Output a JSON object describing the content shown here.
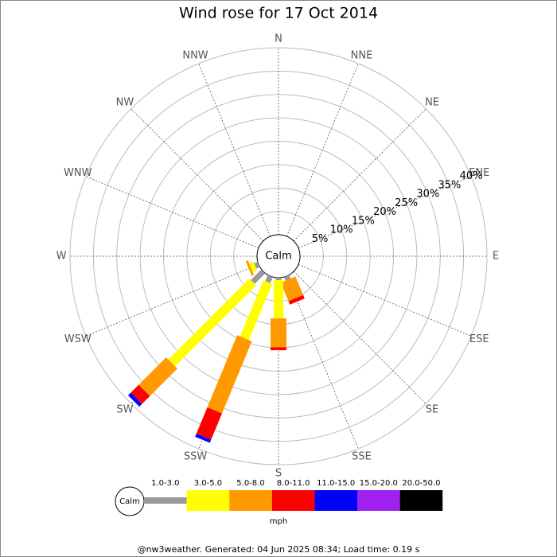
{
  "chart_data": {
    "type": "windrose",
    "title": "Wind rose for 17 Oct 2014",
    "categories": [
      "N",
      "NNE",
      "NE",
      "ENE",
      "E",
      "ESE",
      "SE",
      "SSE",
      "S",
      "SSW",
      "SW",
      "WSW",
      "W",
      "WNW",
      "NW",
      "NNW"
    ],
    "calm_label": "Calm",
    "unit": "mph",
    "rlim": [
      0,
      40
    ],
    "rticks": [
      {
        "value": 5,
        "label": "5%"
      },
      {
        "value": 10,
        "label": "10%"
      },
      {
        "value": 15,
        "label": "15%"
      },
      {
        "value": 20,
        "label": "20%"
      },
      {
        "value": 25,
        "label": "25%"
      },
      {
        "value": 30,
        "label": "30%"
      },
      {
        "value": 35,
        "label": "35%"
      },
      {
        "value": 40,
        "label": "40%"
      }
    ],
    "series": [
      {
        "name": "1.0-3.0",
        "color": "#999999",
        "values": [
          0,
          0,
          0,
          0,
          0,
          0,
          0,
          0.8,
          0.5,
          1.4,
          3.2,
          0.8,
          0,
          0,
          0,
          0
        ]
      },
      {
        "name": "3.0-5.0",
        "color": "#ffff00",
        "values": [
          0,
          0,
          0,
          0,
          0,
          0,
          0,
          0,
          8.2,
          13.0,
          24.5,
          1.0,
          0,
          0,
          0,
          0
        ]
      },
      {
        "name": "5.0-8.0",
        "color": "#ff9900",
        "values": [
          0,
          0,
          0,
          0,
          0,
          0,
          0,
          4.3,
          6.2,
          16.7,
          8.3,
          0.5,
          0,
          0,
          0,
          0
        ]
      },
      {
        "name": "8.0-11.0",
        "color": "#ff0000",
        "values": [
          0,
          0,
          0,
          0,
          0,
          0,
          0,
          0.8,
          0.6,
          6.1,
          2.4,
          0,
          0,
          0,
          0,
          0
        ]
      },
      {
        "name": "11.0-15.0",
        "color": "#0000ff",
        "values": [
          0,
          0,
          0,
          0,
          0,
          0,
          0,
          0,
          0,
          0.7,
          0.8,
          0,
          0,
          0,
          0,
          0
        ]
      },
      {
        "name": "15.0-20.0",
        "color": "#a020f0",
        "values": [
          0,
          0,
          0,
          0,
          0,
          0,
          0,
          0,
          0,
          0,
          0,
          0,
          0,
          0,
          0,
          0
        ]
      },
      {
        "name": "20.0-50.0",
        "color": "#000000",
        "values": [
          0,
          0,
          0,
          0,
          0,
          0,
          0,
          0,
          0,
          0,
          0,
          0,
          0,
          0,
          0,
          0
        ]
      }
    ],
    "footer": "@nw3weather. Generated: 04 Jun 2025 08:34; Load time: 0.19 s"
  }
}
